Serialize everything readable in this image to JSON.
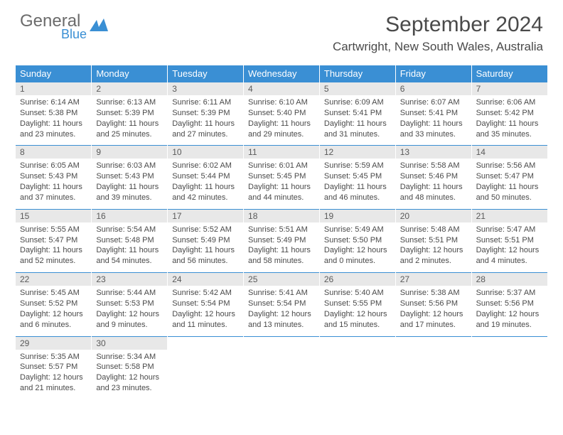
{
  "brand": {
    "name1": "General",
    "name2": "Blue"
  },
  "title": "September 2024",
  "location": "Cartwright, New South Wales, Australia",
  "weekdays": [
    "Sunday",
    "Monday",
    "Tuesday",
    "Wednesday",
    "Thursday",
    "Friday",
    "Saturday"
  ],
  "colors": {
    "header_bg": "#3a8fd4",
    "header_fg": "#ffffff",
    "daynum_bg": "#e8e8e8",
    "text": "#4a4a4a",
    "logo_gray": "#6b6b6b",
    "logo_blue": "#3a8fd4"
  },
  "layout": {
    "cols": 7,
    "rows": 5,
    "cell_font_size": 11,
    "header_font_size": 13,
    "title_font_size": 30
  },
  "days": [
    {
      "n": 1,
      "sunrise": "6:14 AM",
      "sunset": "5:38 PM",
      "dl_h": 11,
      "dl_m": 23
    },
    {
      "n": 2,
      "sunrise": "6:13 AM",
      "sunset": "5:39 PM",
      "dl_h": 11,
      "dl_m": 25
    },
    {
      "n": 3,
      "sunrise": "6:11 AM",
      "sunset": "5:39 PM",
      "dl_h": 11,
      "dl_m": 27
    },
    {
      "n": 4,
      "sunrise": "6:10 AM",
      "sunset": "5:40 PM",
      "dl_h": 11,
      "dl_m": 29
    },
    {
      "n": 5,
      "sunrise": "6:09 AM",
      "sunset": "5:41 PM",
      "dl_h": 11,
      "dl_m": 31
    },
    {
      "n": 6,
      "sunrise": "6:07 AM",
      "sunset": "5:41 PM",
      "dl_h": 11,
      "dl_m": 33
    },
    {
      "n": 7,
      "sunrise": "6:06 AM",
      "sunset": "5:42 PM",
      "dl_h": 11,
      "dl_m": 35
    },
    {
      "n": 8,
      "sunrise": "6:05 AM",
      "sunset": "5:43 PM",
      "dl_h": 11,
      "dl_m": 37
    },
    {
      "n": 9,
      "sunrise": "6:03 AM",
      "sunset": "5:43 PM",
      "dl_h": 11,
      "dl_m": 39
    },
    {
      "n": 10,
      "sunrise": "6:02 AM",
      "sunset": "5:44 PM",
      "dl_h": 11,
      "dl_m": 42
    },
    {
      "n": 11,
      "sunrise": "6:01 AM",
      "sunset": "5:45 PM",
      "dl_h": 11,
      "dl_m": 44
    },
    {
      "n": 12,
      "sunrise": "5:59 AM",
      "sunset": "5:45 PM",
      "dl_h": 11,
      "dl_m": 46
    },
    {
      "n": 13,
      "sunrise": "5:58 AM",
      "sunset": "5:46 PM",
      "dl_h": 11,
      "dl_m": 48
    },
    {
      "n": 14,
      "sunrise": "5:56 AM",
      "sunset": "5:47 PM",
      "dl_h": 11,
      "dl_m": 50
    },
    {
      "n": 15,
      "sunrise": "5:55 AM",
      "sunset": "5:47 PM",
      "dl_h": 11,
      "dl_m": 52
    },
    {
      "n": 16,
      "sunrise": "5:54 AM",
      "sunset": "5:48 PM",
      "dl_h": 11,
      "dl_m": 54
    },
    {
      "n": 17,
      "sunrise": "5:52 AM",
      "sunset": "5:49 PM",
      "dl_h": 11,
      "dl_m": 56
    },
    {
      "n": 18,
      "sunrise": "5:51 AM",
      "sunset": "5:49 PM",
      "dl_h": 11,
      "dl_m": 58
    },
    {
      "n": 19,
      "sunrise": "5:49 AM",
      "sunset": "5:50 PM",
      "dl_h": 12,
      "dl_m": 0
    },
    {
      "n": 20,
      "sunrise": "5:48 AM",
      "sunset": "5:51 PM",
      "dl_h": 12,
      "dl_m": 2
    },
    {
      "n": 21,
      "sunrise": "5:47 AM",
      "sunset": "5:51 PM",
      "dl_h": 12,
      "dl_m": 4
    },
    {
      "n": 22,
      "sunrise": "5:45 AM",
      "sunset": "5:52 PM",
      "dl_h": 12,
      "dl_m": 6
    },
    {
      "n": 23,
      "sunrise": "5:44 AM",
      "sunset": "5:53 PM",
      "dl_h": 12,
      "dl_m": 9
    },
    {
      "n": 24,
      "sunrise": "5:42 AM",
      "sunset": "5:54 PM",
      "dl_h": 12,
      "dl_m": 11
    },
    {
      "n": 25,
      "sunrise": "5:41 AM",
      "sunset": "5:54 PM",
      "dl_h": 12,
      "dl_m": 13
    },
    {
      "n": 26,
      "sunrise": "5:40 AM",
      "sunset": "5:55 PM",
      "dl_h": 12,
      "dl_m": 15
    },
    {
      "n": 27,
      "sunrise": "5:38 AM",
      "sunset": "5:56 PM",
      "dl_h": 12,
      "dl_m": 17
    },
    {
      "n": 28,
      "sunrise": "5:37 AM",
      "sunset": "5:56 PM",
      "dl_h": 12,
      "dl_m": 19
    },
    {
      "n": 29,
      "sunrise": "5:35 AM",
      "sunset": "5:57 PM",
      "dl_h": 12,
      "dl_m": 21
    },
    {
      "n": 30,
      "sunrise": "5:34 AM",
      "sunset": "5:58 PM",
      "dl_h": 12,
      "dl_m": 23
    }
  ],
  "labels": {
    "sunrise_prefix": "Sunrise: ",
    "sunset_prefix": "Sunset: ",
    "daylight_prefix": "Daylight: ",
    "hours_word": " hours",
    "and_word": "and ",
    "minutes_word": " minutes."
  },
  "start_weekday": 0,
  "total_cells": 35
}
